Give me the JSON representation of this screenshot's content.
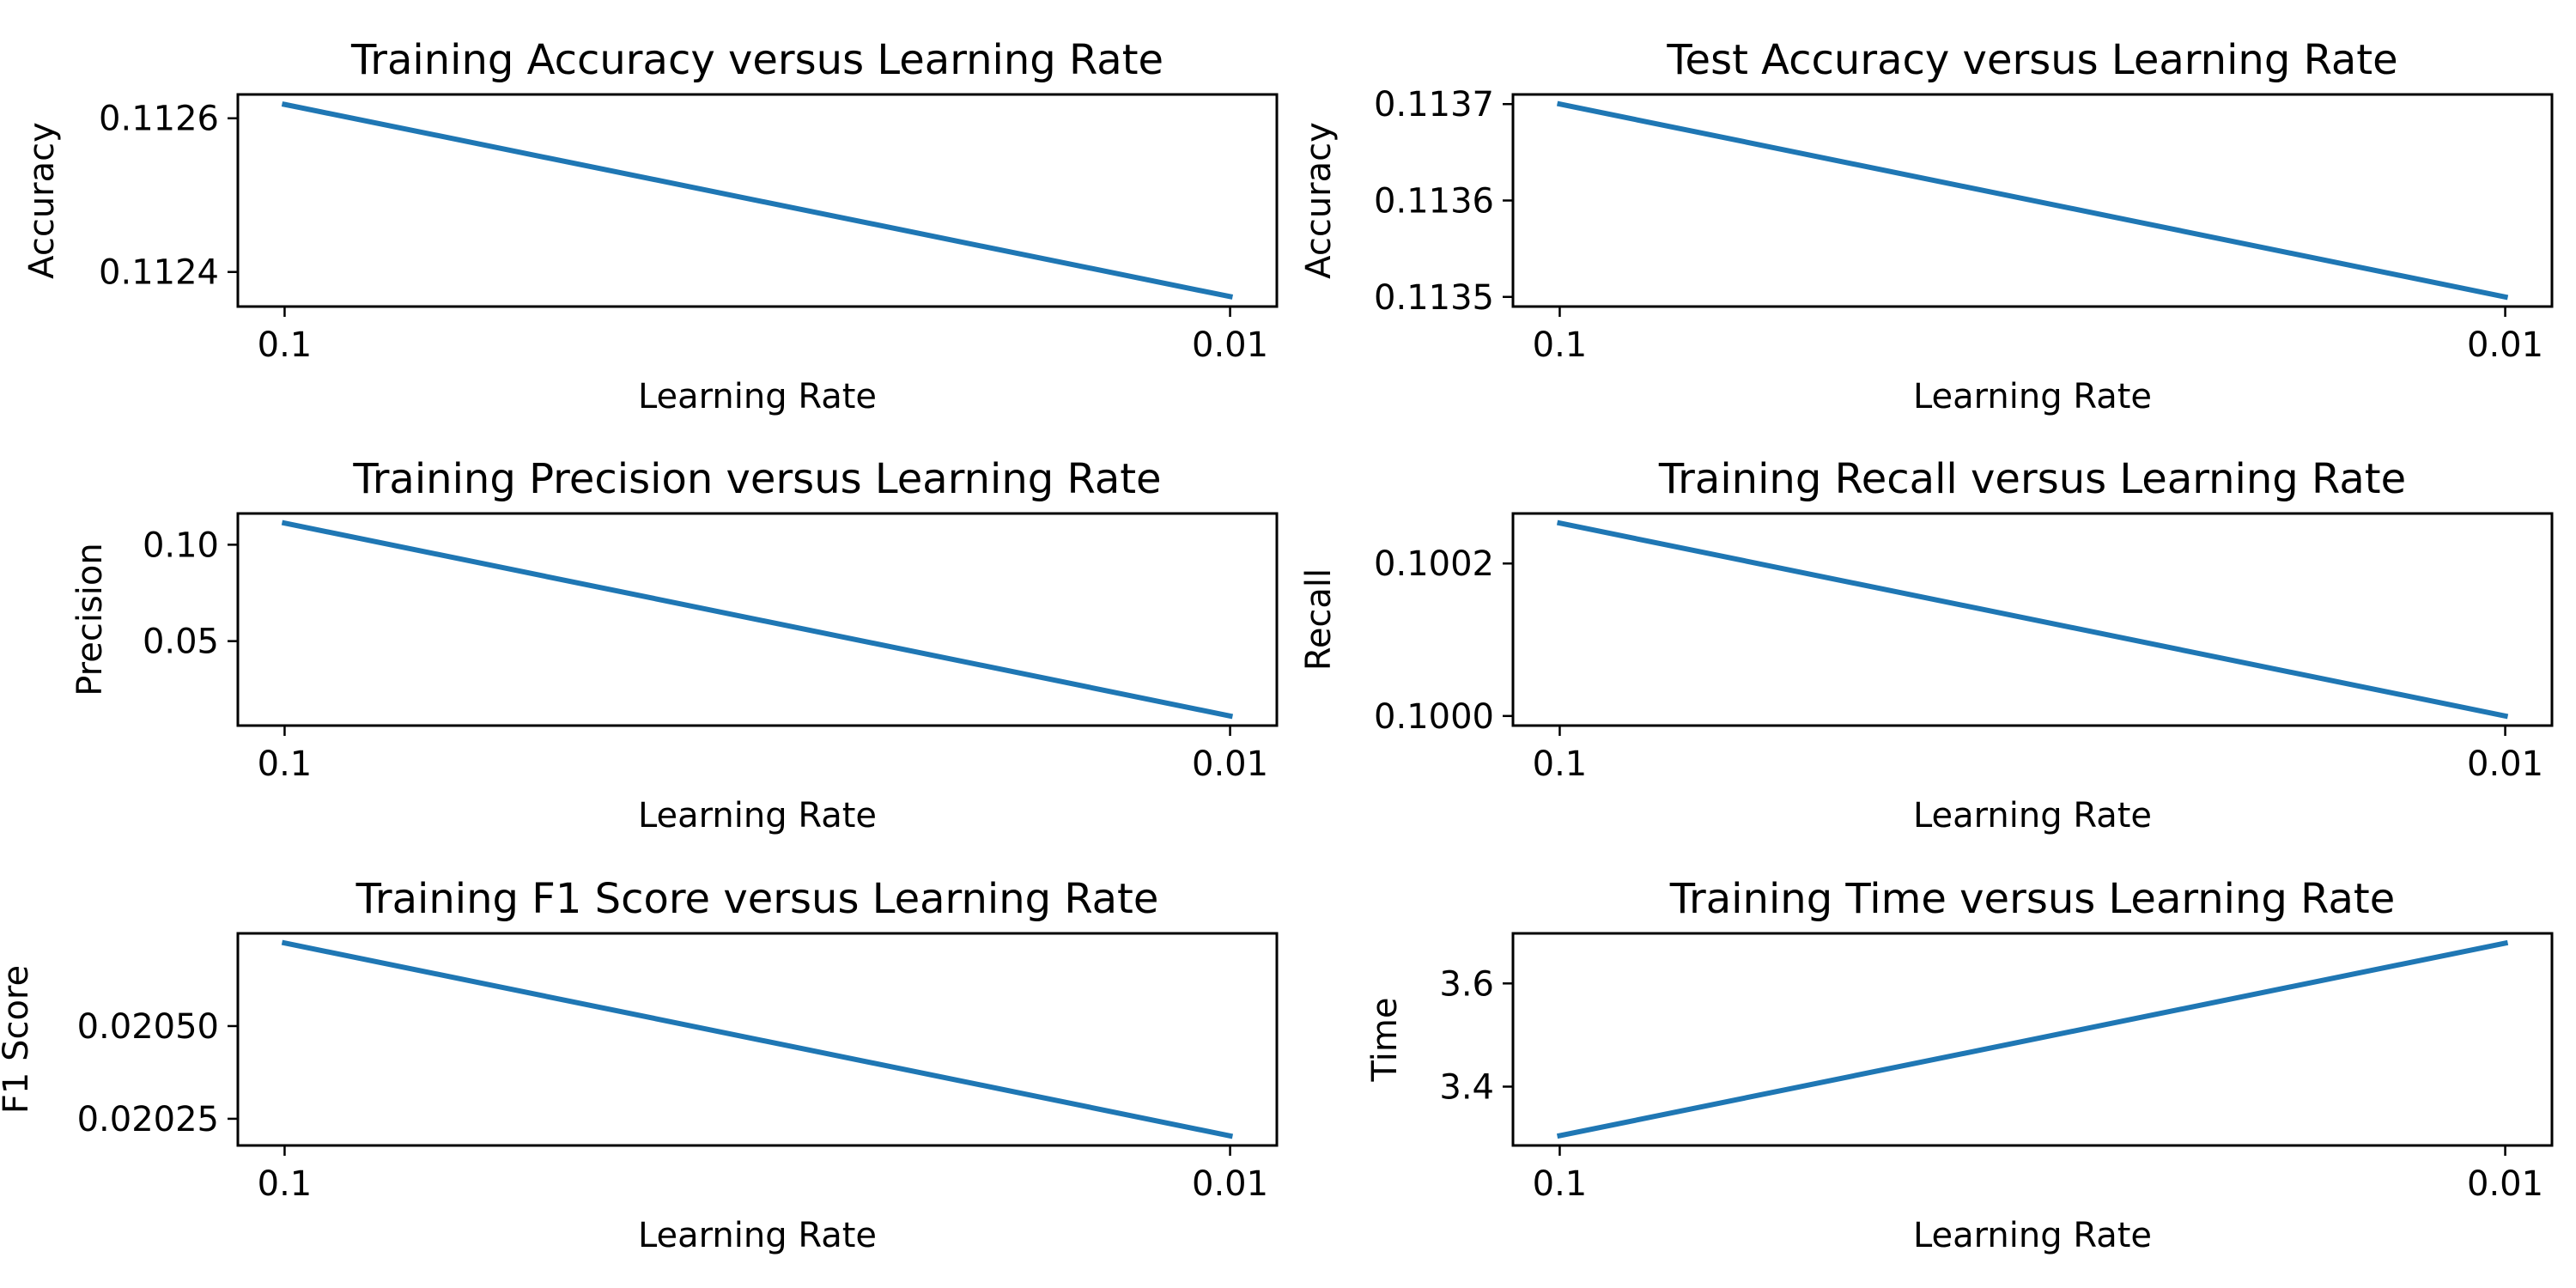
{
  "chart_data": [
    {
      "type": "line",
      "title": "Training Accuracy versus Learning Rate",
      "xlabel": "Learning Rate",
      "ylabel": "Accuracy",
      "categories": [
        "0.1",
        "0.01"
      ],
      "series": [
        {
          "values": [
            0.112618,
            0.112368
          ]
        }
      ],
      "yticks": [
        0.1124,
        0.1126
      ],
      "ytick_labels": [
        "0.1124",
        "0.1126"
      ],
      "ylim": [
        0.112355,
        0.112631
      ],
      "grid": false,
      "color": "#1f77b4"
    },
    {
      "type": "line",
      "title": "Test Accuracy versus Learning Rate",
      "xlabel": "Learning Rate",
      "ylabel": "Accuracy",
      "categories": [
        "0.1",
        "0.01"
      ],
      "series": [
        {
          "values": [
            0.1137,
            0.1135
          ]
        }
      ],
      "yticks": [
        0.1135,
        0.1136,
        0.1137
      ],
      "ytick_labels": [
        "0.1135",
        "0.1136",
        "0.1137"
      ],
      "ylim": [
        0.11349,
        0.11371
      ],
      "grid": false,
      "color": "#1f77b4"
    },
    {
      "type": "line",
      "title": "Training Precision versus Learning Rate",
      "xlabel": "Learning Rate",
      "ylabel": "Precision",
      "categories": [
        "0.1",
        "0.01"
      ],
      "series": [
        {
          "values": [
            0.1112,
            0.0112
          ]
        }
      ],
      "yticks": [
        0.05,
        0.1
      ],
      "ytick_labels": [
        "0.05",
        "0.10"
      ],
      "ylim": [
        0.0062,
        0.1162
      ],
      "grid": false,
      "color": "#1f77b4"
    },
    {
      "type": "line",
      "title": "Training Recall versus Learning Rate",
      "xlabel": "Learning Rate",
      "ylabel": "Recall",
      "categories": [
        "0.1",
        "0.01"
      ],
      "series": [
        {
          "values": [
            0.100253,
            0.1
          ]
        }
      ],
      "yticks": [
        0.1,
        0.1002
      ],
      "ytick_labels": [
        "0.1000",
        "0.1002"
      ],
      "ylim": [
        0.0999874,
        0.1002656
      ],
      "grid": false,
      "color": "#1f77b4"
    },
    {
      "type": "line",
      "title": "Training F1 Score versus Learning Rate",
      "xlabel": "Learning Rate",
      "ylabel": "F1 Score",
      "categories": [
        "0.1",
        "0.01"
      ],
      "series": [
        {
          "values": [
            0.020724,
            0.020204
          ]
        }
      ],
      "yticks": [
        0.02025,
        0.0205
      ],
      "ytick_labels": [
        "0.02025",
        "0.02050"
      ],
      "ylim": [
        0.020178,
        0.02075
      ],
      "grid": false,
      "color": "#1f77b4"
    },
    {
      "type": "line",
      "title": "Training Time versus Learning Rate",
      "xlabel": "Learning Rate",
      "ylabel": "Time",
      "categories": [
        "0.1",
        "0.01"
      ],
      "series": [
        {
          "values": [
            3.305,
            3.678
          ]
        }
      ],
      "yticks": [
        3.4,
        3.6
      ],
      "ytick_labels": [
        "3.4",
        "3.6"
      ],
      "ylim": [
        3.286,
        3.697
      ],
      "grid": false,
      "color": "#1f77b4"
    }
  ]
}
